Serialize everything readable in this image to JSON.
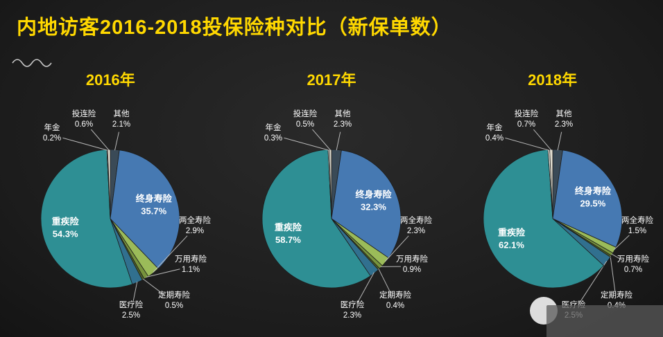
{
  "title": "内地访客2016-2018投保险种对比（新保单数）",
  "theme": {
    "background": "#1e1e1e",
    "title_color": "#FFD800",
    "label_color": "#FFFFFF"
  },
  "chart_data": [
    {
      "type": "pie",
      "title": "2016年",
      "unit": "%",
      "slices": [
        {
          "name": "其他",
          "value": 2.1,
          "color": "#3A4A57"
        },
        {
          "name": "终身寿险",
          "value": 35.7,
          "color": "#4679B2",
          "inside": true
        },
        {
          "name": "两全寿险",
          "value": 2.9,
          "color": "#9BBB59"
        },
        {
          "name": "万用寿险",
          "value": 1.1,
          "color": "#77933C"
        },
        {
          "name": "定期寿险",
          "value": 0.5,
          "color": "#4F6228"
        },
        {
          "name": "医疗险",
          "value": 2.5,
          "color": "#31708F"
        },
        {
          "name": "重疾险",
          "value": 54.3,
          "color": "#2E8F94",
          "inside": true
        },
        {
          "name": "年金",
          "value": 0.2,
          "color": "#F5F2E8"
        },
        {
          "name": "投连险",
          "value": 0.6,
          "color": "#E3DFD2"
        }
      ]
    },
    {
      "type": "pie",
      "title": "2017年",
      "unit": "%",
      "slices": [
        {
          "name": "其他",
          "value": 2.3,
          "color": "#3A4A57"
        },
        {
          "name": "终身寿险",
          "value": 32.3,
          "color": "#4679B2",
          "inside": true
        },
        {
          "name": "两全寿险",
          "value": 2.3,
          "color": "#9BBB59"
        },
        {
          "name": "万用寿险",
          "value": 0.9,
          "color": "#77933C"
        },
        {
          "name": "定期寿险",
          "value": 0.4,
          "color": "#4F6228"
        },
        {
          "name": "医疗险",
          "value": 2.3,
          "color": "#31708F"
        },
        {
          "name": "重疾险",
          "value": 58.7,
          "color": "#2E8F94",
          "inside": true
        },
        {
          "name": "年金",
          "value": 0.3,
          "color": "#F5F2E8"
        },
        {
          "name": "投连险",
          "value": 0.5,
          "color": "#E3DFD2"
        }
      ]
    },
    {
      "type": "pie",
      "title": "2018年",
      "unit": "%",
      "slices": [
        {
          "name": "其他",
          "value": 2.3,
          "color": "#3A4A57"
        },
        {
          "name": "终身寿险",
          "value": 29.5,
          "color": "#4679B2",
          "inside": true
        },
        {
          "name": "两全寿险",
          "value": 1.5,
          "color": "#9BBB59"
        },
        {
          "name": "万用寿险",
          "value": 0.7,
          "color": "#77933C"
        },
        {
          "name": "定期寿险",
          "value": 0.4,
          "color": "#4F6228"
        },
        {
          "name": "医疗险",
          "value": 2.5,
          "color": "#31708F"
        },
        {
          "name": "重疾险",
          "value": 62.1,
          "color": "#2E8F94",
          "inside": true
        },
        {
          "name": "年金",
          "value": 0.4,
          "color": "#F5F2E8"
        },
        {
          "name": "投连险",
          "value": 0.7,
          "color": "#E3DFD2"
        }
      ]
    }
  ]
}
